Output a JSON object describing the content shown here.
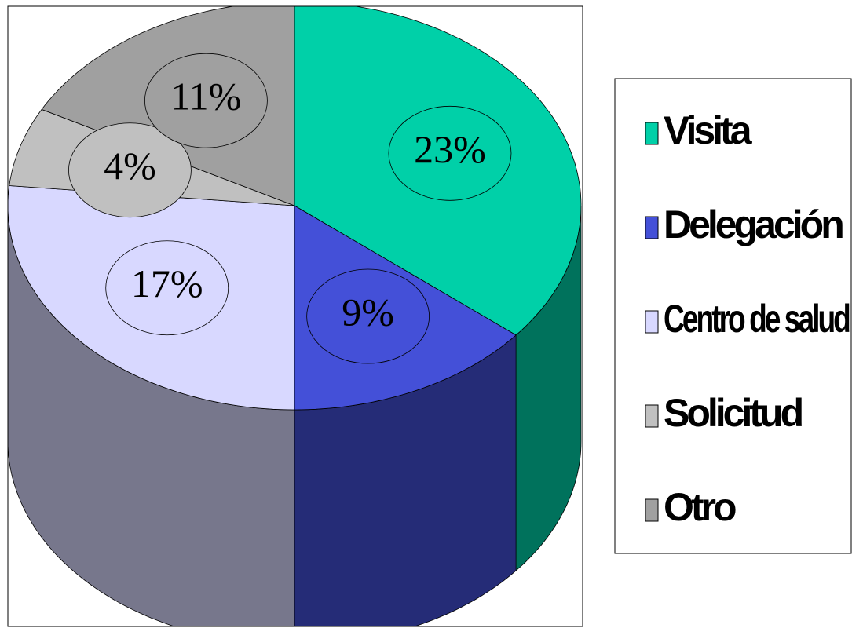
{
  "chart_data": {
    "type": "pie",
    "categories": [
      "Visita",
      "Delegación",
      "Centro de salud",
      "Solicitud",
      "Otro"
    ],
    "values": [
      23,
      9,
      17,
      4,
      11
    ],
    "value_labels": [
      "23%",
      "9%",
      "17%",
      "4%",
      "11%"
    ],
    "colors": [
      "#00d0a8",
      "#4450d8",
      "#d8d8ff",
      "#c0c0c0",
      "#a0a0a0"
    ]
  }
}
